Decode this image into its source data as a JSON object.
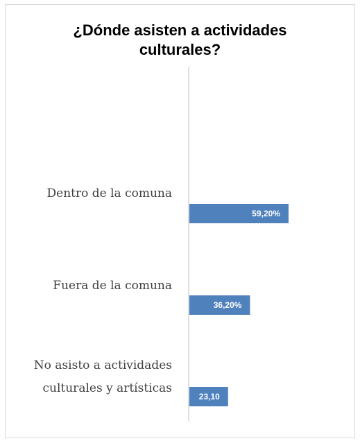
{
  "chart_data": {
    "type": "bar",
    "orientation": "horizontal",
    "title": "¿Dónde asisten a actividades\nculturales?",
    "categories": [
      [
        "Dentro de la comuna"
      ],
      [
        "Fuera de la comuna"
      ],
      [
        "No asisto a actividades",
        "culturales y artísticas"
      ]
    ],
    "values": [
      59.2,
      36.2,
      23.1
    ],
    "data_labels": [
      "59,20%",
      "36,20%",
      "23,10"
    ],
    "xlim": [
      0,
      100
    ],
    "bar_color": "#4f81bd",
    "axis_color": "#bfbfbf",
    "grid": false,
    "legend": "none"
  }
}
